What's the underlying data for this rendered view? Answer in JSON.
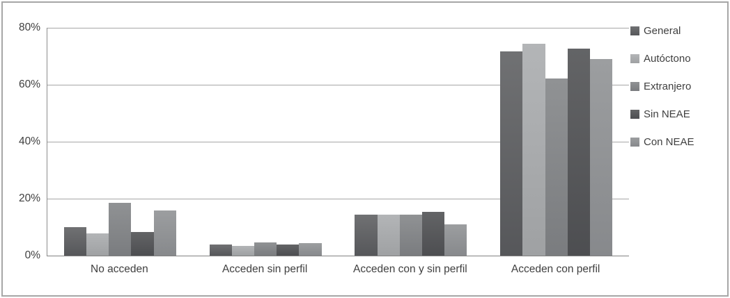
{
  "chart_data": {
    "type": "bar",
    "title": "",
    "categories": [
      "No acceden",
      "Acceden sin perfil",
      "Acceden con y sin perfil",
      "Acceden con perfil"
    ],
    "series": [
      {
        "name": "General",
        "color": "#66686a",
        "color_top": "#707173",
        "color_bottom": "#56575a",
        "values": [
          10.0,
          3.9,
          14.4,
          71.7
        ]
      },
      {
        "name": "Autóctono",
        "color": "#aaacae",
        "color_top": "#b3b5b7",
        "color_bottom": "#9fa1a3",
        "values": [
          7.7,
          3.5,
          14.4,
          74.3
        ]
      },
      {
        "name": "Extranjero",
        "color": "#85878b",
        "color_top": "#909294",
        "color_bottom": "#7a7c7f",
        "values": [
          18.5,
          4.7,
          14.3,
          62.2
        ]
      },
      {
        "name": "Sin NEAE",
        "color": "#58595c",
        "color_top": "#636466",
        "color_bottom": "#4d4e51",
        "values": [
          8.4,
          3.9,
          15.4,
          72.7
        ]
      },
      {
        "name": "Con NEAE",
        "color": "#929497",
        "color_top": "#9c9ea0",
        "color_bottom": "#87898c",
        "values": [
          15.8,
          4.3,
          10.9,
          69.1
        ]
      }
    ],
    "xlabel": "",
    "ylabel": "",
    "ylim": [
      0,
      80
    ],
    "y_tick_step": 20,
    "y_ticks": [
      "0%",
      "20%",
      "40%",
      "60%",
      "80%"
    ],
    "grid": "horizontal",
    "legend_position": "right"
  },
  "colors": {
    "background": "#ffffff",
    "chart_border": "#a6a6a6",
    "gridline": "#a6a6a6",
    "axis_line": "#8c8c8c",
    "text": "#3f3f3f"
  }
}
